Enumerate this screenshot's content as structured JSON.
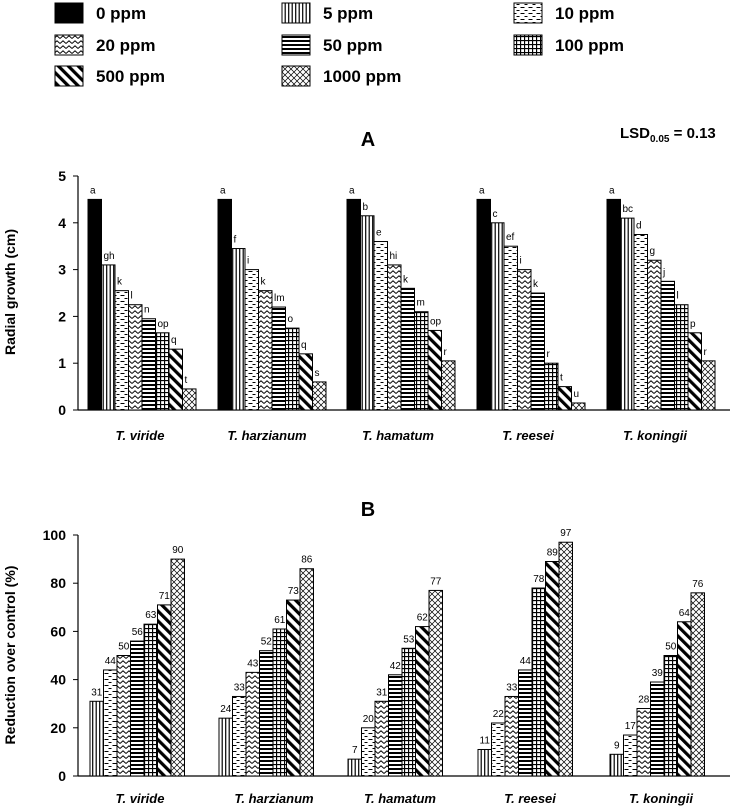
{
  "legend": [
    {
      "key": "c0",
      "label": "0 ppm",
      "pattern": "solid"
    },
    {
      "key": "c5",
      "label": "5 ppm",
      "pattern": "vlines"
    },
    {
      "key": "c10",
      "label": "10 ppm",
      "pattern": "dashes"
    },
    {
      "key": "c20",
      "label": "20 ppm",
      "pattern": "zigzag"
    },
    {
      "key": "c50",
      "label": "50 ppm",
      "pattern": "hlines"
    },
    {
      "key": "c100",
      "label": "100 ppm",
      "pattern": "grid"
    },
    {
      "key": "c500",
      "label": "500 ppm",
      "pattern": "diag"
    },
    {
      "key": "c1000",
      "label": "1000 ppm",
      "pattern": "cross"
    }
  ],
  "lsd": {
    "prefix": "LSD",
    "sub": "0.05",
    "suffix": " = 0.13"
  },
  "chart_data": [
    {
      "type": "bar",
      "panel": "A",
      "title": "A",
      "ylabel": "Radial growth (cm)",
      "ylim": [
        0,
        5
      ],
      "yticks": [
        "0",
        "1",
        "2",
        "3",
        "4",
        "5"
      ],
      "categories": [
        "T. viride",
        "T. harzianum",
        "T. hamatum",
        "T. reesei",
        "T. koningii"
      ],
      "series": [
        {
          "name": "0 ppm",
          "values": [
            4.5,
            4.5,
            4.5,
            4.5,
            4.5
          ],
          "labels": [
            "a",
            "a",
            "a",
            "a",
            "a"
          ]
        },
        {
          "name": "5 ppm",
          "values": [
            3.1,
            3.45,
            4.15,
            4.0,
            4.1
          ],
          "labels": [
            "gh",
            "f",
            "b",
            "c",
            "bc"
          ]
        },
        {
          "name": "10 ppm",
          "values": [
            2.55,
            3.0,
            3.6,
            3.5,
            3.75
          ],
          "labels": [
            "k",
            "i",
            "e",
            "ef",
            "d"
          ]
        },
        {
          "name": "20 ppm",
          "values": [
            2.25,
            2.55,
            3.1,
            3.0,
            3.2
          ],
          "labels": [
            "l",
            "k",
            "hi",
            "i",
            "g"
          ]
        },
        {
          "name": "50 ppm",
          "values": [
            1.95,
            2.2,
            2.6,
            2.5,
            2.75
          ],
          "labels": [
            "n",
            "lm",
            "k",
            "k",
            "j"
          ]
        },
        {
          "name": "100 ppm",
          "values": [
            1.65,
            1.75,
            2.1,
            1.0,
            2.25
          ],
          "labels": [
            "op",
            "o",
            "m",
            "r",
            "l"
          ]
        },
        {
          "name": "500 ppm",
          "values": [
            1.3,
            1.2,
            1.7,
            0.5,
            1.65
          ],
          "labels": [
            "q",
            "q",
            "op",
            "t",
            "p"
          ]
        },
        {
          "name": "1000 ppm",
          "values": [
            0.45,
            0.6,
            1.05,
            0.15,
            1.05
          ],
          "labels": [
            "t",
            "s",
            "r",
            "u",
            "r"
          ]
        }
      ]
    },
    {
      "type": "bar",
      "panel": "B",
      "title": "B",
      "ylabel": "Reduction over control (%)",
      "ylim": [
        0,
        100
      ],
      "yticks": [
        "0",
        "20",
        "40",
        "60",
        "80",
        "100"
      ],
      "categories": [
        "T. viride",
        "T. harzianum",
        "T. hamatum",
        "T. reesei",
        "T. koningii"
      ],
      "series": [
        {
          "name": "5 ppm",
          "values": [
            31,
            24,
            7,
            11,
            9
          ],
          "labels": [
            "31",
            "24",
            "7",
            "11",
            "9"
          ]
        },
        {
          "name": "10 ppm",
          "values": [
            44,
            33,
            20,
            22,
            17
          ],
          "labels": [
            "44",
            "33",
            "20",
            "22",
            "17"
          ]
        },
        {
          "name": "20 ppm",
          "values": [
            50,
            43,
            31,
            33,
            28
          ],
          "labels": [
            "50",
            "43",
            "31",
            "33",
            "28"
          ]
        },
        {
          "name": "50 ppm",
          "values": [
            56,
            52,
            42,
            44,
            39
          ],
          "labels": [
            "56",
            "52",
            "42",
            "44",
            "39"
          ]
        },
        {
          "name": "100 ppm",
          "values": [
            63,
            61,
            53,
            78,
            50
          ],
          "labels": [
            "63",
            "61",
            "53",
            "78",
            "50"
          ]
        },
        {
          "name": "500 ppm",
          "values": [
            71,
            73,
            62,
            89,
            64
          ],
          "labels": [
            "71",
            "73",
            "62",
            "89",
            "64"
          ]
        },
        {
          "name": "1000 ppm",
          "values": [
            90,
            86,
            77,
            97,
            76
          ],
          "labels": [
            "90",
            "86",
            "77",
            "97",
            "76"
          ]
        }
      ]
    }
  ]
}
